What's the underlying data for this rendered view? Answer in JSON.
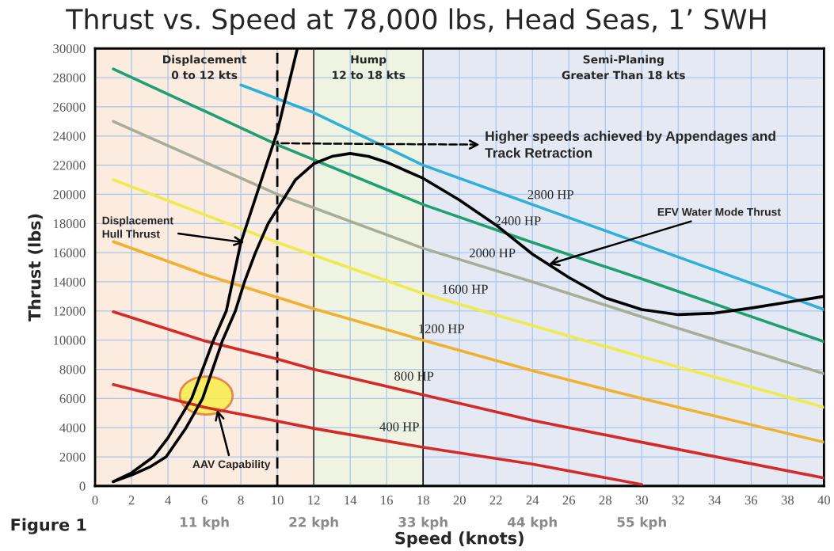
{
  "chart_data": {
    "type": "line",
    "title": "Thrust vs. Speed at 78,000 lbs, Head Seas, 1’ SWH",
    "xlabel": "Speed (knots)",
    "ylabel": "Thrust (lbs)",
    "xlim": [
      0,
      40
    ],
    "xticks": [
      0,
      2,
      4,
      6,
      8,
      10,
      12,
      14,
      16,
      18,
      20,
      22,
      24,
      26,
      28,
      30,
      32,
      34,
      36,
      38,
      40
    ],
    "ylim": [
      0,
      30000
    ],
    "yticks": [
      0,
      2000,
      4000,
      6000,
      8000,
      10000,
      12000,
      14000,
      16000,
      18000,
      20000,
      22000,
      24000,
      26000,
      28000,
      30000
    ],
    "x2lim": [
      0,
      73.33
    ],
    "x2ticks": [
      {
        "value": 11,
        "label": "11 kph"
      },
      {
        "value": 22,
        "label": "22 kph"
      },
      {
        "value": 33,
        "label": "33 kph"
      },
      {
        "value": 44,
        "label": "44 kph"
      },
      {
        "value": 55,
        "label": "55 kph"
      }
    ],
    "grid": true,
    "legend": false,
    "marker": "none",
    "line_style": "solid",
    "series": [
      {
        "color": "#d42a2a",
        "x": [
          1,
          6,
          10,
          12,
          18,
          24,
          30
        ],
        "values": [
          6950,
          5400,
          4450,
          3950,
          2650,
          1500,
          100
        ]
      },
      {
        "color": "#d42a2a",
        "x": [
          1,
          6,
          10,
          12,
          18,
          24,
          30,
          40
        ],
        "values": [
          11950,
          9950,
          8700,
          8000,
          6250,
          4500,
          3000,
          550
        ]
      },
      {
        "color": "#f0b030",
        "x": [
          1,
          6,
          12,
          18,
          24,
          30,
          40
        ],
        "values": [
          16750,
          14500,
          12150,
          10000,
          7900,
          6000,
          3000
        ]
      },
      {
        "color": "#eeea50",
        "x": [
          1,
          10,
          18,
          24,
          30,
          40
        ],
        "values": [
          21000,
          16700,
          13200,
          11000,
          8850,
          5400
        ]
      },
      {
        "color": "#a8ad98",
        "x": [
          1,
          10,
          18,
          24,
          30,
          40
        ],
        "values": [
          25000,
          20000,
          16300,
          14000,
          11600,
          7700
        ]
      },
      {
        "color": "#20a070",
        "x": [
          1,
          10,
          18,
          24,
          30,
          40
        ],
        "values": [
          28600,
          23400,
          19300,
          16700,
          14200,
          9900
        ]
      },
      {
        "color": "#30b0d8",
        "x": [
          8,
          12,
          18,
          24,
          30,
          40
        ],
        "values": [
          27500,
          25600,
          22000,
          19300,
          16600,
          12100
        ]
      },
      {
        "color": "#000000",
        "x": [
          1,
          2,
          3.2,
          4,
          5.3,
          6.5,
          7.2,
          8,
          9,
          10,
          11.1
        ],
        "values": [
          300,
          900,
          2000,
          3300,
          6000,
          10000,
          12000,
          16700,
          20500,
          24300,
          30000
        ]
      },
      {
        "color": "#000000",
        "x": [
          1,
          2,
          3,
          3.9,
          5,
          5.9,
          7,
          7.7,
          8.2,
          8.8,
          9.5,
          10,
          10.5,
          11,
          12,
          13,
          14,
          15,
          16,
          18,
          20,
          22,
          24,
          26,
          28,
          30,
          32,
          34,
          36,
          38,
          40
        ],
        "values": [
          300,
          750,
          1300,
          2000,
          4000,
          6000,
          10000,
          12000,
          14000,
          16000,
          18000,
          19000,
          20000,
          21000,
          22100,
          22600,
          22800,
          22600,
          22200,
          21100,
          19600,
          17900,
          15900,
          14300,
          12900,
          12100,
          11750,
          11850,
          12200,
          12600,
          13000
        ]
      }
    ],
    "bands": [
      {
        "axis": "x",
        "from": 0,
        "to": 12,
        "label": "Displacement\n0 to 12 kts",
        "color": "#fcebdf"
      },
      {
        "axis": "x",
        "from": 12,
        "to": 18,
        "label": "Hump\n12 to 18 kts",
        "color": "#eef3e2"
      },
      {
        "axis": "x",
        "from": 18,
        "to": 40,
        "label": "Semi-Planing\nGreater Than 18 kts",
        "color": "#e4e9f4"
      }
    ],
    "ref_lines": [
      {
        "axis": "x",
        "value": 10,
        "color": "#000000",
        "line_style": "dashed"
      },
      {
        "axis": "x",
        "value": 12,
        "color": "#333333",
        "line_style": "solid"
      },
      {
        "axis": "x",
        "value": 18,
        "color": "#000000",
        "line_style": "solid"
      }
    ],
    "annotations": [
      {
        "text": "Displacement\nHull Thrust",
        "x": 8.2,
        "y": 16700
      },
      {
        "text": "EFV Water Mode Thrust",
        "x": 24.9,
        "y": 15200
      },
      {
        "text": "AAV Capability",
        "x": 6.7,
        "y": 5230
      },
      {
        "text": "Higher speeds achieved by Appendages and\nTrack Retraction",
        "x": 10,
        "y": 23500
      },
      {
        "text": "400 HP",
        "x": 16.7,
        "y": 2930
      },
      {
        "text": "800 HP",
        "x": 17.5,
        "y": 6400
      },
      {
        "text": "1200 HP",
        "x": 19.0,
        "y": 9650
      },
      {
        "text": "1600 HP",
        "x": 20.3,
        "y": 12360
      },
      {
        "text": "2000 HP",
        "x": 21.8,
        "y": 14840
      },
      {
        "text": "2400 HP",
        "x": 23.2,
        "y": 17050
      },
      {
        "text": "2800 HP",
        "x": 25.0,
        "y": 18850
      },
      "Figure 1"
    ]
  }
}
